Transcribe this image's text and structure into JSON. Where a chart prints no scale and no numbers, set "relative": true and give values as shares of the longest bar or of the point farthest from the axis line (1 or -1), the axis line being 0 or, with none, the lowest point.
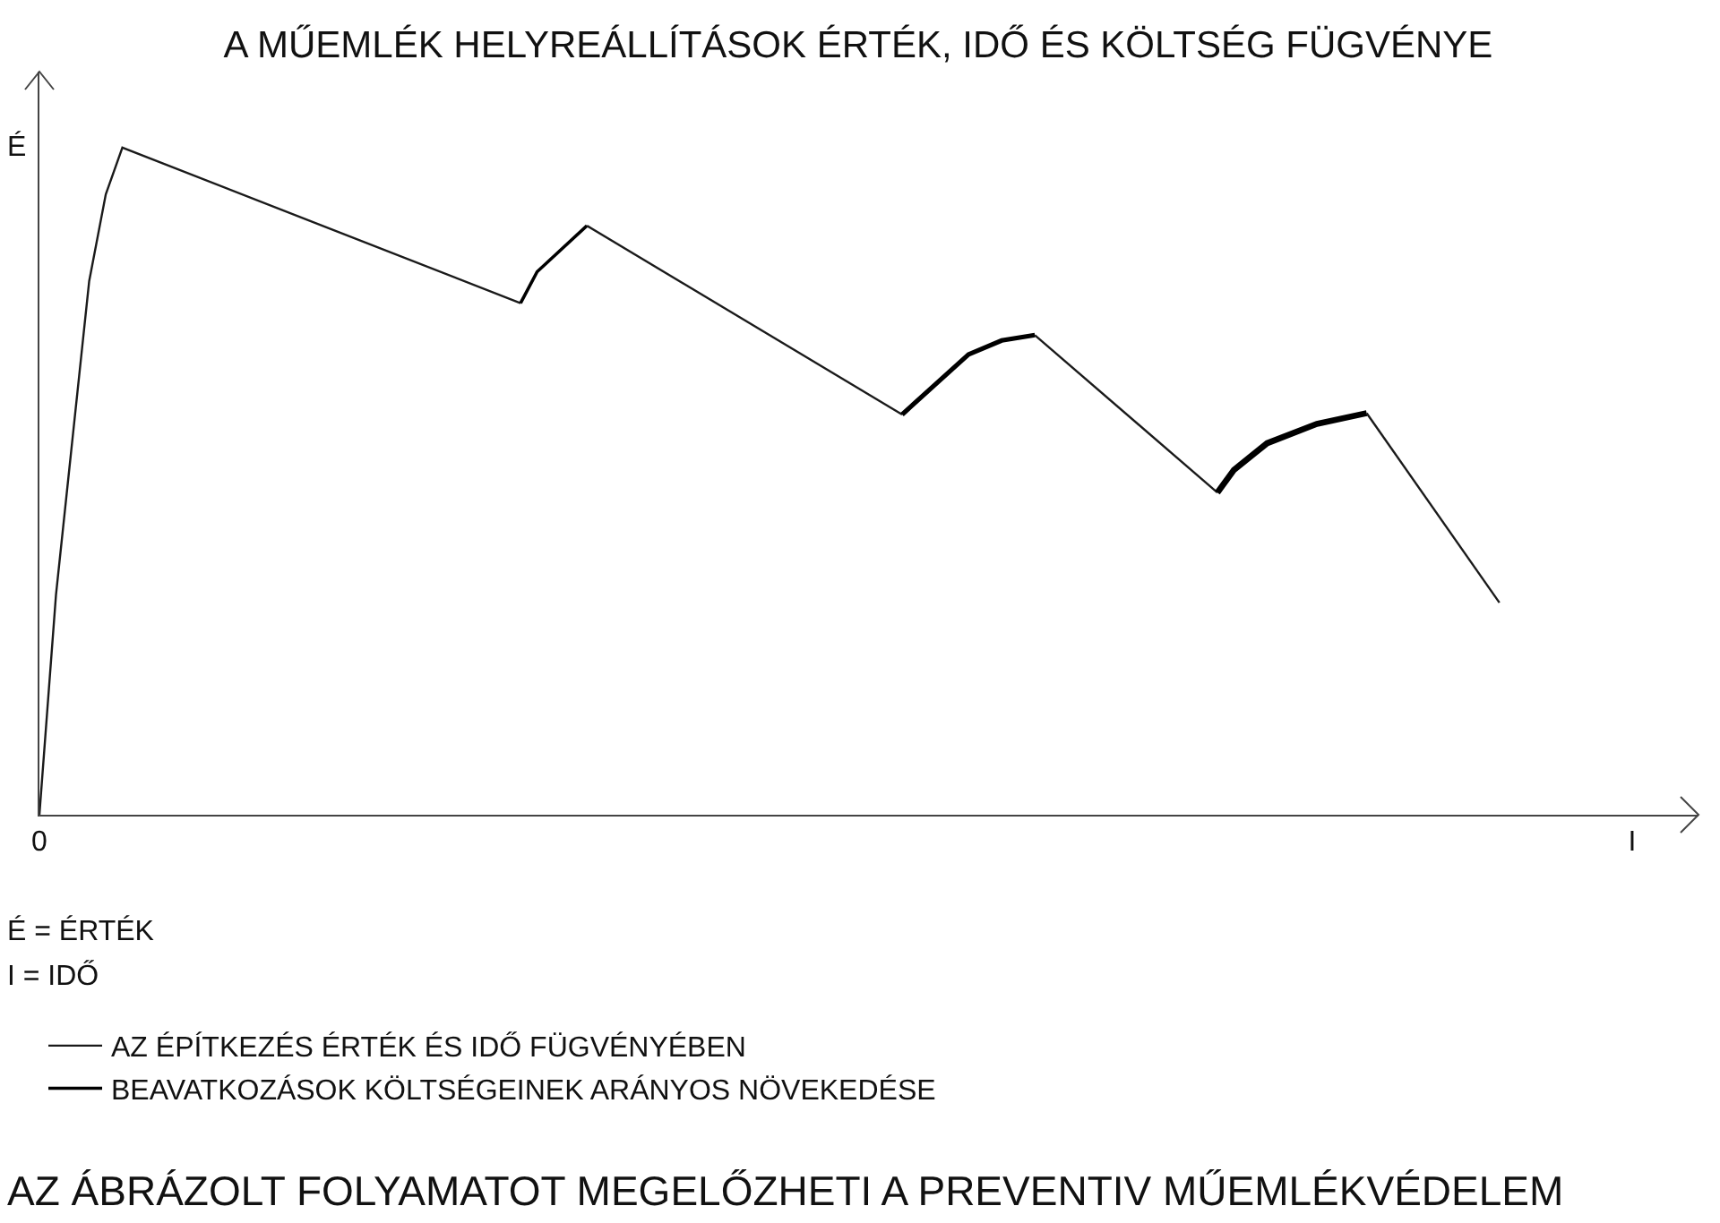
{
  "chart_data": {
    "type": "line",
    "title": "A MŰEMLÉK HELYREÁLLÍTÁSOK ÉRTÉK, IDŐ ÉS KÖLTSÉG FÜGVÉNYE",
    "ylabel": "É",
    "relative": true,
    "legend": "bottom",
    "marker": "none",
    "line_style": "solid",
    "categories": [
      "0",
      null,
      null,
      null,
      null,
      null,
      null,
      null,
      null,
      null,
      null,
      null,
      null,
      null,
      null,
      null,
      null,
      null,
      null,
      null,
      null,
      null,
      null,
      null,
      null,
      null,
      null,
      null,
      null,
      null,
      null,
      null,
      null,
      null,
      null,
      null,
      null,
      null,
      null,
      null,
      null,
      null,
      null,
      null,
      null,
      null,
      null,
      null,
      null,
      null,
      null,
      null,
      null,
      null,
      null,
      null,
      null,
      null,
      null,
      null,
      null,
      null,
      null,
      null,
      null,
      null,
      null,
      null,
      null,
      null,
      null,
      null,
      null,
      null,
      null,
      null,
      null,
      null,
      null,
      null,
      null,
      null,
      null,
      null,
      null,
      null,
      null,
      null,
      null,
      null,
      null,
      null,
      null,
      null,
      null,
      null,
      "I",
      null,
      null,
      null,
      null
    ],
    "annotations": [
      "É = ÉRTÉK",
      "I = IDŐ",
      "AZ ÁBRÁZOLT FOLYAMATOT MEGELŐZHETI A PREVENTIV MŰEMLÉKVÉDELEM"
    ],
    "series": [
      {
        "name": "AZ ÉPÍTKEZÉS ÉRTÉK ÉS IDŐ FÜGVÉNYÉBEN",
        "color": "#1a1a1a",
        "values": [
          0,
          0.33,
          null,
          0.8,
          0.93,
          1,
          null,
          null,
          null,
          null,
          null,
          null,
          null,
          null,
          null,
          null,
          null,
          null,
          null,
          null,
          null,
          null,
          null,
          null,
          null,
          null,
          null,
          null,
          null,
          0.767,
          null,
          null,
          null,
          null,
          null,
          null,
          null,
          null,
          null,
          null,
          null,
          null,
          null,
          null,
          null,
          null,
          null,
          null,
          null,
          null,
          null,
          null,
          null,
          null,
          null,
          null,
          null,
          null,
          null,
          null,
          null,
          null,
          null,
          null,
          null,
          null,
          null,
          null,
          null,
          null,
          null,
          null,
          null,
          null,
          null,
          null,
          null,
          null,
          null,
          null,
          null,
          null,
          null,
          null,
          null,
          null,
          null,
          null,
          null,
          null,
          null,
          null,
          null,
          null,
          null,
          null,
          null,
          null,
          null,
          null,
          null
        ]
      },
      {
        "name": "BEAVATKOZÁSOK KÖLTSÉGEINEK ARÁNYOS NÖVEKEDÉSE",
        "color": "#000000",
        "values": [
          null,
          null,
          null,
          null,
          null,
          null,
          null,
          null,
          null,
          null,
          null,
          null,
          null,
          null,
          null,
          null,
          null,
          null,
          null,
          null,
          null,
          null,
          null,
          null,
          null,
          null,
          null,
          null,
          null,
          0.767,
          0.814,
          null,
          null,
          0.883,
          null,
          null,
          null,
          null,
          null,
          null,
          null,
          null,
          null,
          null,
          null,
          null,
          null,
          null,
          null,
          null,
          null,
          null,
          null,
          null,
          null,
          null,
          null,
          null,
          null,
          null,
          null,
          null,
          null,
          null,
          null,
          null,
          null,
          null,
          null,
          null,
          null,
          null,
          null,
          null,
          null,
          null,
          null,
          null,
          null,
          null,
          null,
          null,
          null,
          null,
          null,
          null,
          null,
          null,
          null,
          null,
          null,
          null,
          null,
          null,
          null,
          null,
          null,
          null,
          null,
          null,
          null
        ]
      },
      {
        "color": "#1a1a1a",
        "values": [
          null,
          null,
          null,
          null,
          null,
          null,
          null,
          null,
          null,
          null,
          null,
          null,
          null,
          null,
          null,
          null,
          null,
          null,
          null,
          null,
          null,
          null,
          null,
          null,
          null,
          null,
          null,
          null,
          null,
          null,
          null,
          null,
          null,
          0.883,
          null,
          null,
          null,
          null,
          null,
          null,
          null,
          null,
          null,
          null,
          null,
          null,
          null,
          null,
          null,
          null,
          null,
          null,
          0.6,
          null,
          null,
          null,
          null,
          null,
          null,
          null,
          null,
          null,
          null,
          null,
          null,
          null,
          null,
          null,
          null,
          null,
          null,
          null,
          null,
          null,
          null,
          null,
          null,
          null,
          null,
          null,
          null,
          null,
          null,
          null,
          null,
          null,
          null,
          null,
          null,
          null,
          null,
          null,
          null,
          null,
          null,
          null,
          null,
          null,
          null,
          null,
          null
        ]
      },
      {
        "color": "#000000",
        "values": [
          null,
          null,
          null,
          null,
          null,
          null,
          null,
          null,
          null,
          null,
          null,
          null,
          null,
          null,
          null,
          null,
          null,
          null,
          null,
          null,
          null,
          null,
          null,
          null,
          null,
          null,
          null,
          null,
          null,
          null,
          null,
          null,
          null,
          null,
          null,
          null,
          null,
          null,
          null,
          null,
          null,
          null,
          null,
          null,
          null,
          null,
          null,
          null,
          null,
          null,
          null,
          null,
          0.6,
          null,
          0.645,
          null,
          0.69,
          null,
          0.711,
          null,
          0.719,
          null,
          null,
          null,
          null,
          null,
          null,
          null,
          null,
          null,
          null,
          null,
          null,
          null,
          null,
          null,
          null,
          null,
          null,
          null,
          null,
          null,
          null,
          null,
          null,
          null,
          null,
          null,
          null,
          null,
          null,
          null,
          null,
          null,
          null,
          null,
          null,
          null,
          null,
          null,
          null
        ]
      },
      {
        "color": "#1a1a1a",
        "values": [
          null,
          null,
          null,
          null,
          null,
          null,
          null,
          null,
          null,
          null,
          null,
          null,
          null,
          null,
          null,
          null,
          null,
          null,
          null,
          null,
          null,
          null,
          null,
          null,
          null,
          null,
          null,
          null,
          null,
          null,
          null,
          null,
          null,
          null,
          null,
          null,
          null,
          null,
          null,
          null,
          null,
          null,
          null,
          null,
          null,
          null,
          null,
          null,
          null,
          null,
          null,
          null,
          null,
          null,
          null,
          null,
          null,
          null,
          null,
          null,
          0.719,
          null,
          null,
          null,
          null,
          null,
          null,
          null,
          null,
          null,
          null,
          0.483,
          null,
          null,
          null,
          null,
          null,
          null,
          null,
          null,
          null,
          null,
          null,
          null,
          null,
          null,
          null,
          null,
          null,
          null,
          null,
          null,
          null,
          null,
          null,
          null,
          null,
          null,
          null,
          null,
          null
        ]
      },
      {
        "color": "#000000",
        "values": [
          null,
          null,
          null,
          null,
          null,
          null,
          null,
          null,
          null,
          null,
          null,
          null,
          null,
          null,
          null,
          null,
          null,
          null,
          null,
          null,
          null,
          null,
          null,
          null,
          null,
          null,
          null,
          null,
          null,
          null,
          null,
          null,
          null,
          null,
          null,
          null,
          null,
          null,
          null,
          null,
          null,
          null,
          null,
          null,
          null,
          null,
          null,
          null,
          null,
          null,
          null,
          null,
          null,
          null,
          null,
          null,
          null,
          null,
          null,
          null,
          null,
          null,
          null,
          null,
          null,
          null,
          null,
          null,
          null,
          null,
          null,
          0.483,
          0.517,
          null,
          0.557,
          null,
          null,
          0.586,
          null,
          null,
          0.602,
          null,
          null,
          null,
          null,
          null,
          null,
          null,
          null,
          null,
          null,
          null,
          null,
          null,
          null,
          null,
          null,
          null,
          null,
          null,
          null
        ]
      },
      {
        "color": "#1a1a1a",
        "values": [
          null,
          null,
          null,
          null,
          null,
          null,
          null,
          null,
          null,
          null,
          null,
          null,
          null,
          null,
          null,
          null,
          null,
          null,
          null,
          null,
          null,
          null,
          null,
          null,
          null,
          null,
          null,
          null,
          null,
          null,
          null,
          null,
          null,
          null,
          null,
          null,
          null,
          null,
          null,
          null,
          null,
          null,
          null,
          null,
          null,
          null,
          null,
          null,
          null,
          null,
          null,
          null,
          null,
          null,
          null,
          null,
          null,
          null,
          null,
          null,
          null,
          null,
          null,
          null,
          null,
          null,
          null,
          null,
          null,
          null,
          null,
          null,
          null,
          null,
          null,
          null,
          null,
          null,
          null,
          null,
          0.602,
          null,
          null,
          null,
          null,
          null,
          null,
          null,
          0.318,
          null,
          null,
          null,
          null,
          null,
          null,
          null,
          null,
          null,
          null,
          null,
          null
        ]
      }
    ]
  }
}
